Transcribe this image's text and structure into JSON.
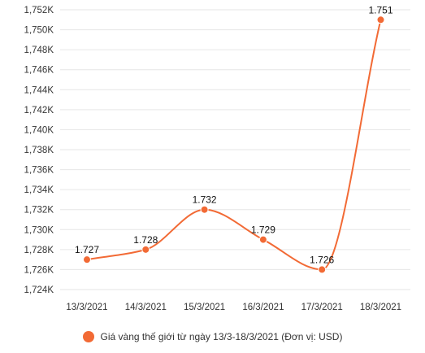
{
  "chart_data": {
    "type": "line",
    "smooth": true,
    "categories": [
      "13/3/2021",
      "14/3/2021",
      "15/3/2021",
      "16/3/2021",
      "17/3/2021",
      "18/3/2021"
    ],
    "series": [
      {
        "name": "Giá vàng thế giới từ ngày 13/3-18/3/2021 (Đơn vị: USD)",
        "values": [
          1727,
          1728,
          1732,
          1729,
          1726,
          1751
        ],
        "data_labels": [
          "1.727",
          "1.728",
          "1.732",
          "1.729",
          "1.726",
          "1.751"
        ],
        "color": "#f26a35"
      }
    ],
    "ylim": [
      1724,
      1752
    ],
    "y_ticks": [
      1724,
      1726,
      1728,
      1730,
      1732,
      1734,
      1736,
      1738,
      1740,
      1742,
      1744,
      1746,
      1748,
      1750,
      1752
    ],
    "y_tick_labels": [
      "1,724K",
      "1,726K",
      "1,728K",
      "1,730K",
      "1,732K",
      "1,734K",
      "1,736K",
      "1,738K",
      "1,740K",
      "1,742K",
      "1,744K",
      "1,746K",
      "1,748K",
      "1,750K",
      "1,752K"
    ],
    "grid": "horizontal",
    "legend": "bottom-center",
    "title": "",
    "xlabel": "",
    "ylabel": ""
  }
}
